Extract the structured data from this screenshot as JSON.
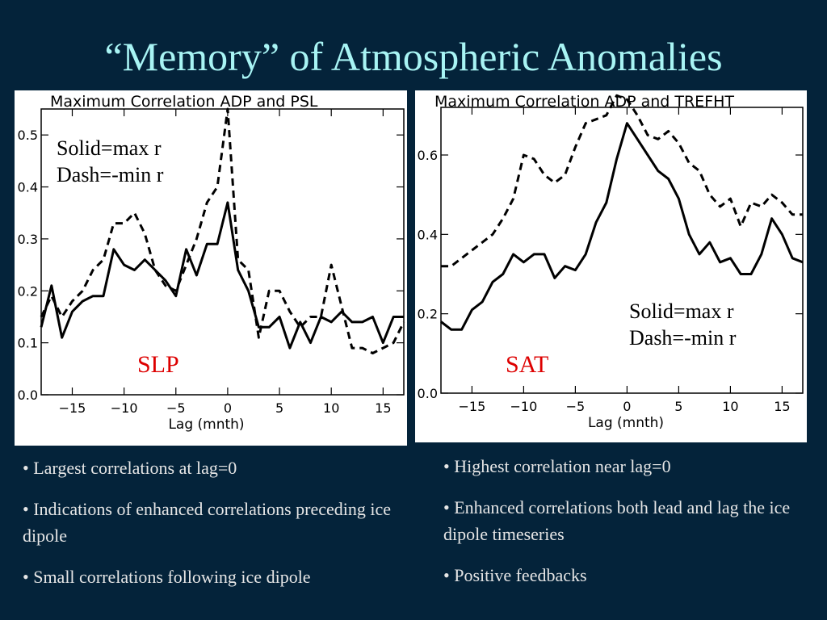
{
  "slide": {
    "title": "“Memory” of Atmospheric Anomalies"
  },
  "charts": {
    "slp": {
      "annotation_line1": "Solid=max r",
      "annotation_line2": "Dash=-min r",
      "variable_label": "SLP"
    },
    "sat": {
      "annotation_line1": "Solid=max r",
      "annotation_line2": "Dash=-min r",
      "variable_label": "SAT"
    }
  },
  "bullets_left": [
    "• Largest correlations at lag=0",
    "• Indications of enhanced correlations preceding ice dipole",
    "• Small correlations following ice dipole"
  ],
  "bullets_right": [
    "• Highest correlation near lag=0",
    "• Enhanced correlations both lead and lag the ice dipole timeseries",
    "• Positive feedbacks"
  ],
  "colors": {
    "background": "#04233a",
    "title": "#a8f4f4",
    "variable_label": "#dd0000",
    "bullet_text": "#e6e6e6"
  },
  "chart_data": [
    {
      "type": "line",
      "title": "Maximum Correlation ADP and PSL",
      "xlabel": "Lag (mnth)",
      "ylabel": "",
      "xlim": [
        -18,
        17
      ],
      "ylim": [
        0,
        0.55
      ],
      "xticks": [
        -15,
        -10,
        -5,
        0,
        5,
        10,
        15
      ],
      "xtick_labels": [
        "−15",
        "−10",
        "−5",
        "0",
        "5",
        "10",
        "15"
      ],
      "yticks": [
        0,
        0.1,
        0.2,
        0.3,
        0.4,
        0.5
      ],
      "ytick_labels": [
        "0.0",
        "0.1",
        "0.2",
        "0.3",
        "0.4",
        "0.5"
      ],
      "x": [
        -18,
        -17,
        -16,
        -15,
        -14,
        -13,
        -12,
        -11,
        -10,
        -9,
        -8,
        -7,
        -6,
        -5,
        -4,
        -3,
        -2,
        -1,
        0,
        1,
        2,
        3,
        4,
        5,
        6,
        7,
        8,
        9,
        10,
        11,
        12,
        13,
        14,
        15,
        16,
        17
      ],
      "series": [
        {
          "style": "solid",
          "values": [
            0.13,
            0.21,
            0.11,
            0.16,
            0.18,
            0.19,
            0.19,
            0.28,
            0.25,
            0.24,
            0.26,
            0.24,
            0.22,
            0.19,
            0.28,
            0.23,
            0.29,
            0.29,
            0.37,
            0.24,
            0.2,
            0.13,
            0.13,
            0.15,
            0.09,
            0.14,
            0.1,
            0.15,
            0.14,
            0.16,
            0.14,
            0.14,
            0.15,
            0.1,
            0.15,
            0.15
          ]
        },
        {
          "style": "dashed",
          "values": [
            0.15,
            0.19,
            0.15,
            0.18,
            0.2,
            0.24,
            0.26,
            0.33,
            0.33,
            0.35,
            0.31,
            0.24,
            0.21,
            0.2,
            0.25,
            0.3,
            0.37,
            0.4,
            0.55,
            0.26,
            0.24,
            0.11,
            0.2,
            0.2,
            0.16,
            0.13,
            0.15,
            0.15,
            0.25,
            0.17,
            0.09,
            0.09,
            0.08,
            0.09,
            0.1,
            0.14
          ]
        }
      ]
    },
    {
      "type": "line",
      "title": "Maximum Correlation ADP and TREFHT",
      "xlabel": "Lag (mnth)",
      "ylabel": "",
      "xlim": [
        -18,
        17
      ],
      "ylim": [
        0,
        0.72
      ],
      "xticks": [
        -15,
        -10,
        -5,
        0,
        5,
        10,
        15
      ],
      "xtick_labels": [
        "−15",
        "−10",
        "−5",
        "0",
        "5",
        "10",
        "15"
      ],
      "yticks": [
        0,
        0.2,
        0.4,
        0.6
      ],
      "ytick_labels": [
        "0.0",
        "0.2",
        "0.4",
        "0.6"
      ],
      "x": [
        -18,
        -17,
        -16,
        -15,
        -14,
        -13,
        -12,
        -11,
        -10,
        -9,
        -8,
        -7,
        -6,
        -5,
        -4,
        -3,
        -2,
        -1,
        0,
        1,
        2,
        3,
        4,
        5,
        6,
        7,
        8,
        9,
        10,
        11,
        12,
        13,
        14,
        15,
        16,
        17
      ],
      "series": [
        {
          "style": "solid",
          "values": [
            0.18,
            0.16,
            0.16,
            0.21,
            0.23,
            0.28,
            0.3,
            0.35,
            0.33,
            0.35,
            0.35,
            0.29,
            0.32,
            0.31,
            0.35,
            0.43,
            0.48,
            0.59,
            0.68,
            0.64,
            0.6,
            0.56,
            0.54,
            0.49,
            0.4,
            0.35,
            0.38,
            0.33,
            0.34,
            0.3,
            0.3,
            0.35,
            0.44,
            0.4,
            0.34,
            0.33
          ]
        },
        {
          "style": "dashed",
          "values": [
            0.32,
            0.32,
            0.34,
            0.36,
            0.38,
            0.4,
            0.44,
            0.49,
            0.6,
            0.59,
            0.55,
            0.53,
            0.55,
            0.62,
            0.68,
            0.69,
            0.7,
            0.75,
            0.74,
            0.7,
            0.65,
            0.64,
            0.66,
            0.63,
            0.58,
            0.56,
            0.5,
            0.47,
            0.49,
            0.42,
            0.48,
            0.47,
            0.5,
            0.48,
            0.45,
            0.45
          ]
        }
      ]
    }
  ]
}
